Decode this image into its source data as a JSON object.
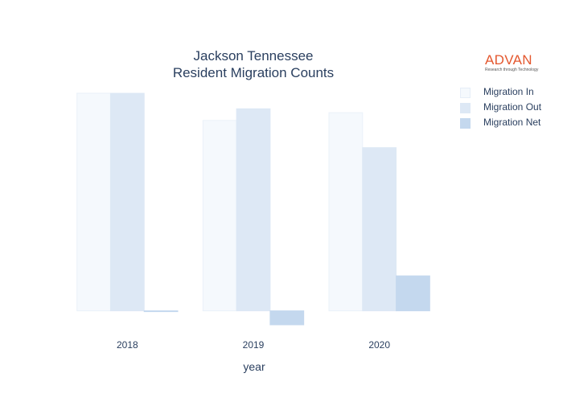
{
  "chart_data": {
    "type": "bar",
    "title_line1": "Jackson Tennessee",
    "title_line2": "Resident Migration Counts",
    "xlabel": "year",
    "ylabel": "",
    "categories": [
      "2018",
      "2019",
      "2020"
    ],
    "ylim": [
      -180,
      2800
    ],
    "grid": false,
    "legend_position": "top-right",
    "series": [
      {
        "name": "Migration In",
        "values": [
          2800,
          2450,
          2550
        ],
        "color": "#f5f9fd"
      },
      {
        "name": "Migration Out",
        "values": [
          2800,
          2600,
          2100
        ],
        "color": "#dde8f5"
      },
      {
        "name": "Migration Net",
        "values": [
          0,
          -180,
          450
        ],
        "color": "#c4d8ee"
      }
    ]
  },
  "logo": {
    "name": "ADVAN",
    "tagline": "Research through Technology"
  }
}
